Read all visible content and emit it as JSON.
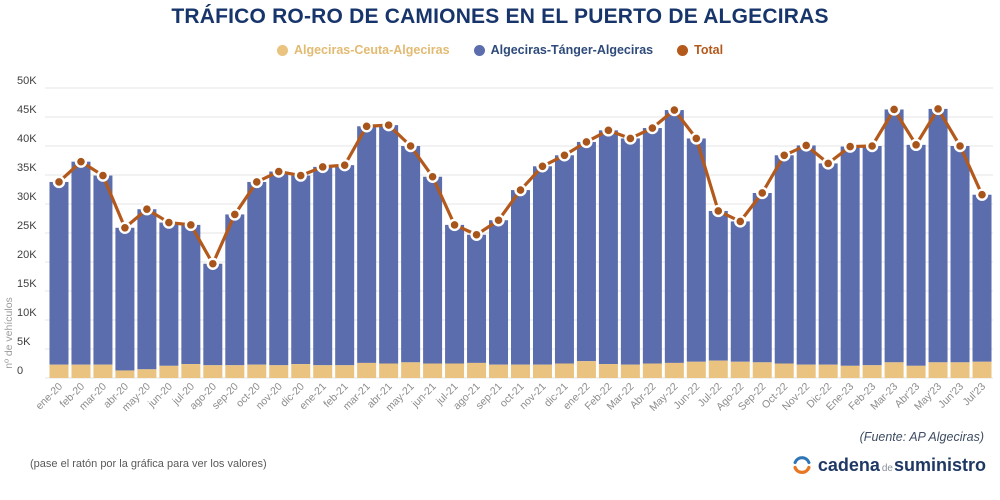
{
  "chart_data": {
    "type": "bar",
    "stacked": true,
    "title": "TRÁFICO RO-RO DE CAMIONES EN EL PUERTO DE ALGECIRAS",
    "xlabel": "",
    "ylabel": "nº de vehículos",
    "ylim": [
      0,
      50000
    ],
    "y_tick_step": 5000,
    "y_ticks": [
      "0",
      "5K",
      "10K",
      "15K",
      "20K",
      "25K",
      "30K",
      "35K",
      "40K",
      "45K",
      "50K"
    ],
    "grid": true,
    "legend_position": "top",
    "categories": [
      "ene-20",
      "feb-20",
      "mar-20",
      "abr-20",
      "may-20",
      "jun-20",
      "jul-20",
      "ago-20",
      "sep-20",
      "oct-20",
      "nov-20",
      "dic-20",
      "ene-21",
      "feb-21",
      "mar-21",
      "abr-21",
      "may-21",
      "jun-21",
      "jul-21",
      "ago-21",
      "sep-21",
      "oct-21",
      "nov-21",
      "dic-21",
      "ene-22",
      "Feb-22",
      "Mar-22",
      "Abr-22",
      "May-22",
      "Jun-22",
      "Jul-22",
      "Ago-22",
      "Sep-22",
      "Oct-22",
      "Nov-22",
      "Dic-22",
      "Ene-23",
      "Feb-23",
      "Mar-23",
      "Abr'23",
      "May'23",
      "Jun'23",
      "Jul'23"
    ],
    "series": [
      {
        "name": "Algeciras-Ceuta-Algeciras",
        "type": "bar",
        "color": "#e9c37f",
        "text_color": "#e2ba72",
        "values": [
          2300,
          2300,
          2300,
          1300,
          1500,
          2100,
          2400,
          2200,
          2200,
          2300,
          2200,
          2400,
          2200,
          2200,
          2600,
          2500,
          2700,
          2500,
          2500,
          2600,
          2300,
          2300,
          2300,
          2500,
          2900,
          2400,
          2300,
          2500,
          2600,
          2800,
          3000,
          2800,
          2700,
          2500,
          2300,
          2300,
          2100,
          2200,
          2700,
          2100,
          2700,
          2700,
          2800
        ]
      },
      {
        "name": "Algeciras-Tánger-Algeciras",
        "type": "bar",
        "color": "#5b6dad",
        "text_color": "#2d4a7a",
        "values": [
          31500,
          35000,
          32600,
          24600,
          27600,
          24700,
          24000,
          17500,
          26000,
          31500,
          33400,
          32500,
          34200,
          34500,
          40800,
          41100,
          37300,
          32200,
          23900,
          22100,
          24900,
          30100,
          34200,
          35900,
          37800,
          40300,
          39000,
          40600,
          43600,
          38500,
          25800,
          24200,
          29200,
          35900,
          37800,
          34700,
          37800,
          37800,
          43600,
          38100,
          43700,
          37300,
          28800
        ]
      },
      {
        "name": "Total",
        "type": "line",
        "color": "#b3591c",
        "text_color": "#b3591c",
        "values": [
          33800,
          37300,
          34900,
          25900,
          29100,
          26800,
          26400,
          19700,
          28200,
          33800,
          35600,
          34900,
          36400,
          36700,
          43400,
          43600,
          40000,
          34700,
          26400,
          24700,
          27200,
          32400,
          36500,
          38400,
          40700,
          42700,
          41300,
          43100,
          46200,
          41300,
          28800,
          27000,
          31900,
          38400,
          40100,
          37000,
          39900,
          40000,
          46300,
          40200,
          46400,
          40000,
          31600
        ]
      }
    ]
  },
  "colors": {
    "title": "#17356b",
    "gridline": "#e4e4e4",
    "y_tick_label": "#3f3f3f",
    "x_tick_label": "#8c8c8c",
    "axis_title": "#9c9c9c",
    "dot_fill": "#a8551c",
    "background": "#ffffff",
    "logo_blue": "#2e75b6",
    "logo_orange": "#e87722"
  },
  "footer": {
    "hint": "(pase el ratón por la gráfica para ver los valores)",
    "source": "(Fuente: AP Algeciras)",
    "logo": {
      "word1": "cadena",
      "word2": "de",
      "word3": "suministro"
    }
  }
}
